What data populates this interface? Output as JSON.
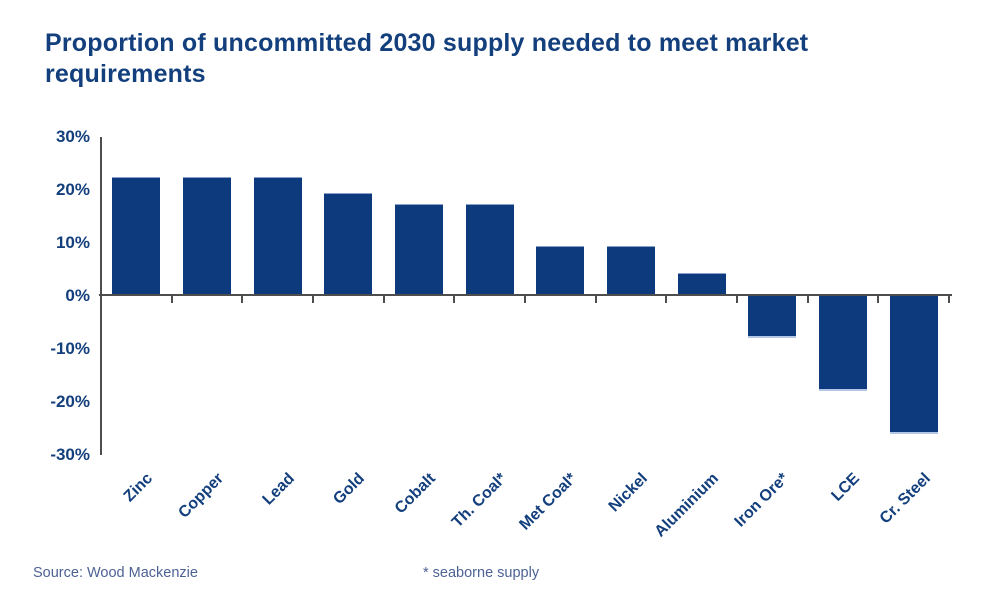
{
  "title_lines": [
    "Proportion of uncommitted 2030 supply needed to meet market",
    "requirements"
  ],
  "footer": {
    "source": "Source: Wood Mackenzie",
    "note": "* seaborne supply"
  },
  "colors": {
    "bar": "#0c3a7d",
    "bar_edge": "#b4c7e7",
    "bar_edge_light": "#88a2cc",
    "text_navy": "#133f7d",
    "axis": "#4d4d4d",
    "footer_text": "#4d6294"
  },
  "chart_data": {
    "type": "bar",
    "title": "Proportion of uncommitted 2030 supply needed to meet market requirements",
    "categories": [
      "Zinc",
      "Copper",
      "Lead",
      "Gold",
      "Cobalt",
      "Th. Coal*",
      "Met Coal*",
      "Nickel",
      "Aluminium",
      "Iron Ore*",
      "LCE",
      "Cr. Steel"
    ],
    "values": [
      22,
      22,
      22,
      19,
      17,
      17,
      9,
      9,
      4,
      -8,
      -18,
      -26
    ],
    "xlabel": "",
    "ylabel": "",
    "ylim": [
      -30,
      30
    ],
    "yticks": [
      30,
      20,
      10,
      0,
      -10,
      -20,
      -30
    ],
    "ytick_format": "percent",
    "grid": false,
    "legend": false,
    "bar_color": "#0c3a7d",
    "annotations": [
      "* seaborne supply"
    ],
    "source": "Wood Mackenzie"
  }
}
